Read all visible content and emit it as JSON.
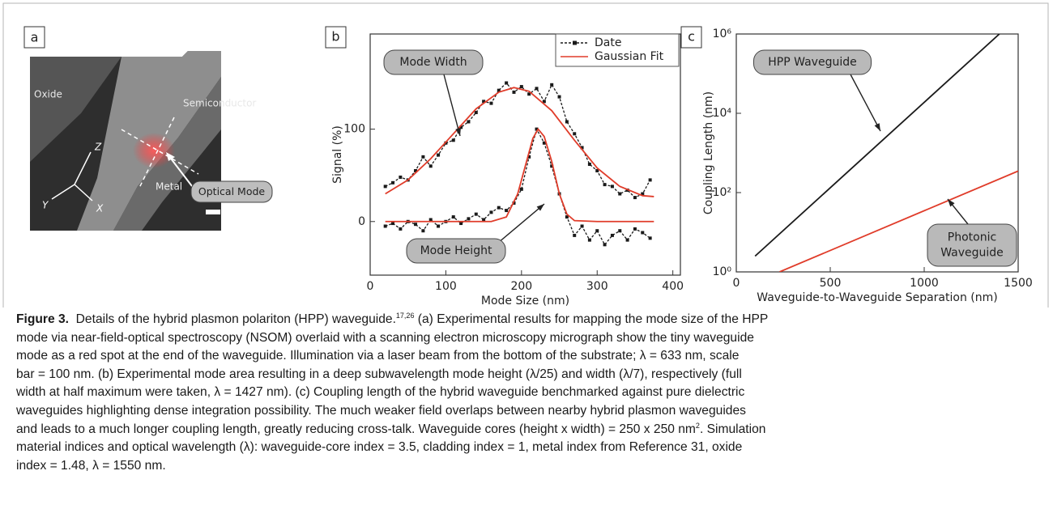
{
  "panels": [
    "a",
    "b",
    "c"
  ],
  "micrograph": {
    "labels": [
      "Oxide",
      "Semiconductor",
      "Metal",
      "Optical Mode"
    ],
    "axes": [
      "Z",
      "Y",
      "X"
    ]
  },
  "chart_data": [
    {
      "type": "line",
      "xlabel": "Mode Size (nm)",
      "ylabel": "Signal (%)",
      "xlim": [
        0,
        410
      ],
      "xticks": [
        0,
        100,
        200,
        300,
        400
      ],
      "ylim": [
        -58,
        203
      ],
      "yticks": [
        0,
        100
      ],
      "legend": "upper right",
      "series": [
        {
          "name": "Date",
          "color": "#1a1a1a",
          "marker": "square",
          "x": [
            20,
            30,
            40,
            50,
            60,
            70,
            80,
            90,
            100,
            110,
            120,
            130,
            140,
            150,
            160,
            170,
            180,
            190,
            200,
            210,
            220,
            230,
            240,
            250,
            260,
            270,
            280,
            290,
            300,
            310,
            320,
            330,
            340,
            350,
            360,
            370,
            null,
            20,
            30,
            40,
            50,
            60,
            70,
            80,
            90,
            100,
            110,
            120,
            130,
            140,
            150,
            160,
            170,
            180,
            190,
            200,
            210,
            220,
            230,
            240,
            250,
            260,
            270,
            280,
            290,
            300,
            310,
            320,
            330,
            340,
            350,
            360,
            370
          ],
          "values": [
            38,
            42,
            48,
            45,
            55,
            70,
            60,
            72,
            85,
            88,
            102,
            108,
            118,
            130,
            128,
            142,
            150,
            140,
            146,
            138,
            144,
            130,
            148,
            135,
            108,
            95,
            80,
            62,
            55,
            40,
            38,
            30,
            34,
            26,
            30,
            45,
            null,
            -5,
            -2,
            -8,
            0,
            -3,
            -10,
            2,
            -5,
            0,
            5,
            -2,
            3,
            8,
            2,
            10,
            15,
            12,
            20,
            35,
            70,
            100,
            85,
            60,
            30,
            5,
            -15,
            -5,
            -20,
            -10,
            -25,
            -15,
            -10,
            -20,
            -8,
            -12,
            -18
          ]
        },
        {
          "name": "Gaussian Fit",
          "color": "#e03c2a",
          "x": [
            20,
            50,
            80,
            110,
            140,
            170,
            190,
            210,
            240,
            270,
            300,
            330,
            360,
            375,
            null,
            20,
            100,
            160,
            180,
            195,
            205,
            215,
            222,
            230,
            240,
            250,
            260,
            270,
            300,
            375
          ],
          "values": [
            30,
            45,
            68,
            95,
            122,
            140,
            145,
            141,
            120,
            88,
            58,
            38,
            28,
            27,
            null,
            0,
            0,
            0,
            5,
            30,
            60,
            90,
            100,
            92,
            65,
            30,
            8,
            1,
            0,
            0
          ]
        }
      ],
      "annotations": [
        {
          "text": "Mode Width"
        },
        {
          "text": "Mode Height"
        }
      ]
    },
    {
      "type": "line",
      "xlabel": "Waveguide-to-Waveguide Separation (nm)",
      "ylabel": "Coupling Length (nm)",
      "xlim": [
        0,
        1500
      ],
      "xticks": [
        0,
        500,
        1000,
        1500
      ],
      "ylim": [
        1,
        1000000
      ],
      "log_y": true,
      "yticks": [
        {
          "value": 1,
          "label": "10⁰"
        },
        {
          "value": 100,
          "label": "10²"
        },
        {
          "value": 10000,
          "label": "10⁴"
        },
        {
          "value": 1000000,
          "label": "10⁶"
        }
      ],
      "series": [
        {
          "color": "#1a1a1a",
          "x": [
            100,
            1400
          ],
          "values": [
            2.5,
            1000000
          ]
        },
        {
          "color": "#e03c2a",
          "x": [
            230,
            1500
          ],
          "values": [
            1,
            350
          ]
        }
      ],
      "annotations": [
        {
          "text": [
            "HPP Waveguide"
          ]
        },
        {
          "text": [
            "Photonic",
            "Waveguide"
          ]
        }
      ]
    }
  ],
  "caption": {
    "label": "Figure 3.",
    "lines": [
      [
        "Details of the hybrid plasmon polariton (HPP) waveguide.",
        "17,26",
        "(a) Experimental results for mapping the mode size of the HPP"
      ],
      [
        "mode via near-field-optical spectroscopy (NSOM) overlaid with a scanning electron microscopy micrograph show the tiny waveguide"
      ],
      [
        "mode as a red spot at the end of the waveguide. Illumination via a laser beam from the bottom of the substrate; λ = 633 nm, scale"
      ],
      [
        "bar = 100 nm. (b) Experimental mode area resulting in a deep subwavelength mode height (λ/25) and width (λ/7), respectively (full"
      ],
      [
        "width at half maximum were taken, λ = 1427 nm). (c) Coupling length of the hybrid waveguide benchmarked against pure dielectric"
      ],
      [
        "waveguides highlighting dense integration possibility. The much weaker field overlaps between nearby hybrid plasmon waveguides"
      ],
      [
        "and leads to a much longer coupling length, greatly reducing cross-talk. Waveguide cores (height x width) = 250 x 250 nm",
        "2",
        ". Simulation"
      ],
      [
        "material indices and optical wavelength (λ): waveguide-core index = 3.5, cladding index = 1, metal index from Reference 31, oxide"
      ],
      [
        "index = 1.48, λ = 1550 nm."
      ]
    ]
  }
}
